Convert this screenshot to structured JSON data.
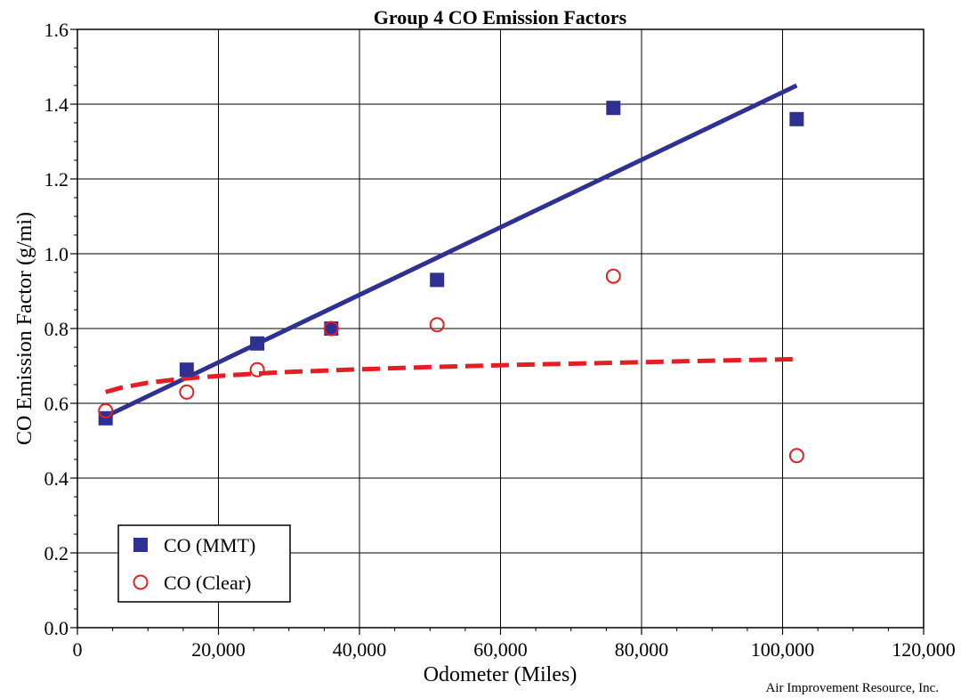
{
  "chart_data": {
    "type": "scatter",
    "title": "Group 4 CO Emission Factors",
    "xlabel": "Odometer (Miles)",
    "ylabel": "CO Emission Factor (g/mi)",
    "xlim": [
      0,
      120000
    ],
    "ylim": [
      0.0,
      1.6
    ],
    "x_ticks": [
      0,
      20000,
      40000,
      60000,
      80000,
      100000,
      120000
    ],
    "x_tick_labels": [
      "0",
      "20,000",
      "40,000",
      "60,000",
      "80,000",
      "100,000",
      "120,000"
    ],
    "y_ticks": [
      0.0,
      0.2,
      0.4,
      0.6,
      0.8,
      1.0,
      1.2,
      1.4,
      1.6
    ],
    "y_tick_labels": [
      "0.0",
      "0.2",
      "0.4",
      "0.6",
      "0.8",
      "1.0",
      "1.2",
      "1.4",
      "1.6"
    ],
    "grid": true,
    "legend_position": "bottom-left",
    "series": [
      {
        "name": "CO (MMT)",
        "marker": "filled-square",
        "color": "#2e3192",
        "x": [
          4000,
          15500,
          25500,
          36000,
          51000,
          76000,
          102000
        ],
        "y": [
          0.56,
          0.69,
          0.76,
          0.8,
          0.93,
          1.39,
          1.36
        ]
      },
      {
        "name": "CO (Clear)",
        "marker": "open-circle",
        "color": "#e31e24",
        "x": [
          4000,
          15500,
          25500,
          36000,
          51000,
          76000,
          102000
        ],
        "y": [
          0.58,
          0.63,
          0.69,
          0.8,
          0.81,
          0.94,
          0.46
        ]
      }
    ],
    "trendlines": [
      {
        "series": "CO (MMT)",
        "style": "solid",
        "color": "#2e3192",
        "kind": "linear",
        "x": [
          4000,
          102000
        ],
        "y": [
          0.565,
          1.45
        ]
      },
      {
        "series": "CO (Clear)",
        "style": "dashed",
        "color": "#e31e24",
        "kind": "logarithmic",
        "x": [
          4000,
          6000,
          8000,
          10000,
          15000,
          20000,
          25000,
          30000,
          40000,
          50000,
          60000,
          70000,
          80000,
          90000,
          102000
        ],
        "y": [
          0.63,
          0.641,
          0.648,
          0.655,
          0.666,
          0.673,
          0.679,
          0.684,
          0.691,
          0.697,
          0.702,
          0.706,
          0.71,
          0.714,
          0.718
        ]
      }
    ]
  },
  "credit": "Air Improvement Resource, Inc."
}
